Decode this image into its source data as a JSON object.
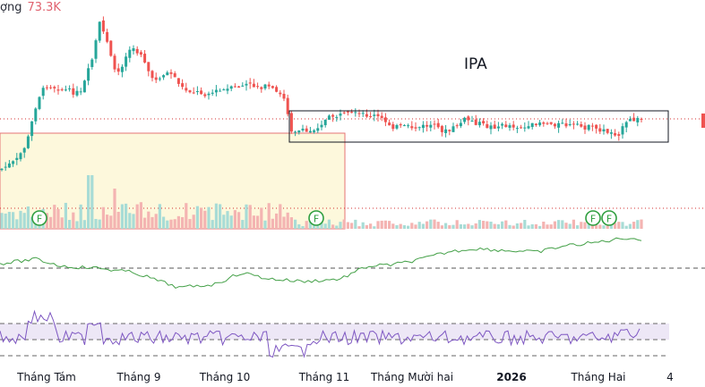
{
  "header": {
    "volume_label": "ợng",
    "volume_value": "73.3K"
  },
  "chart_data": {
    "type": "candlestick",
    "title": "IPA",
    "x_ticks": [
      "Tháng Tám",
      "Tháng 9",
      "Tháng 10",
      "Tháng 11",
      "Tháng Mười hai",
      "2026",
      "Tháng Hai",
      "4"
    ],
    "event_markers": [
      "F",
      "F",
      "F",
      "F"
    ],
    "colors": {
      "up": "#26a69a",
      "down": "#ef5350",
      "rsi_line": "#7e57c2",
      "rsi_band": "#ede7f6",
      "green_line": "#43a047"
    },
    "panels": [
      "price",
      "volume",
      "indicator",
      "rsi"
    ],
    "annotations": [
      "IPA box consolidation range",
      "highlighted range from August to November"
    ]
  }
}
